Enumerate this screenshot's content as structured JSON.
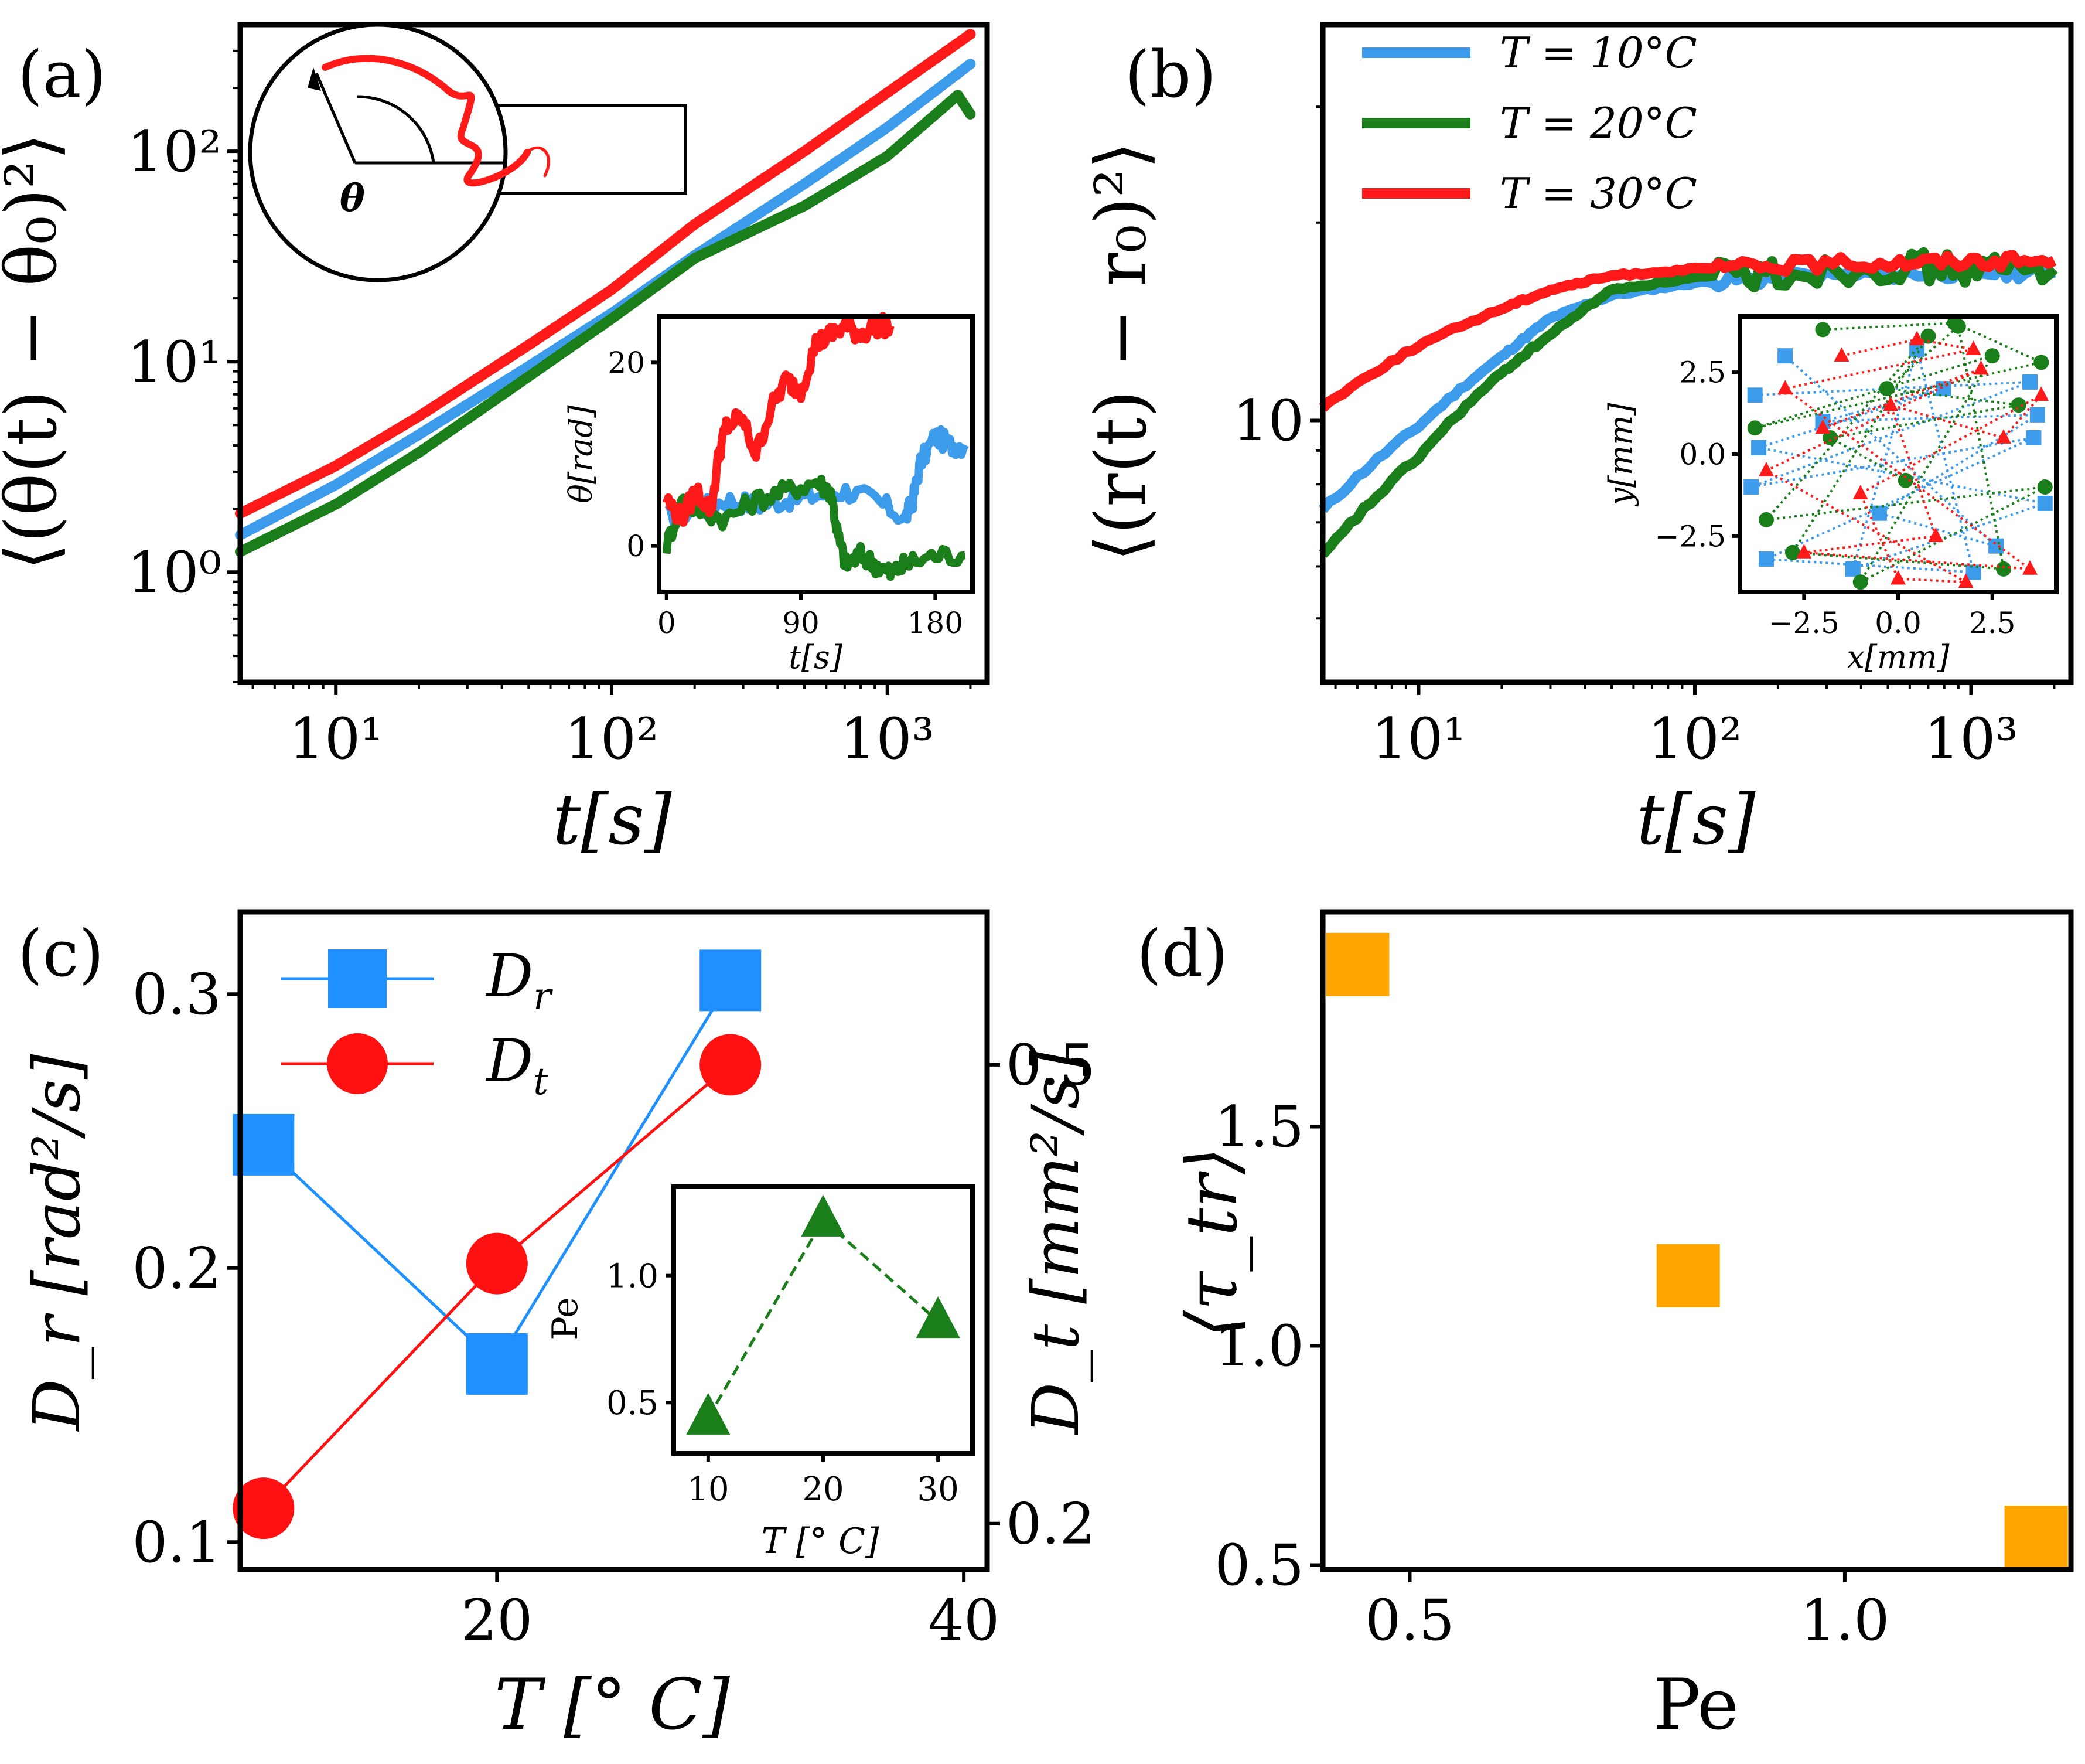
{
  "colors": {
    "T10": "#3d9bec",
    "T20": "#1a7f1a",
    "T30": "#ff1a1a",
    "Dr": "#1e90ff",
    "Dt": "#ff1111",
    "pe": "#1a7f1a",
    "tau": "#ffa500"
  },
  "chart_data": [
    {
      "id": "a",
      "panel_label": "(a)",
      "type": "line",
      "xscale": "log",
      "yscale": "log",
      "xlim": [
        4.5,
        2300
      ],
      "ylim": [
        0.3,
        400
      ],
      "xlabel": "t[s]",
      "ylabel": "⟨(θ(t) − θ₀)²⟩",
      "xticks": [
        {
          "v": 10,
          "label": "10¹"
        },
        {
          "v": 100,
          "label": "10²"
        },
        {
          "v": 1000,
          "label": "10³"
        }
      ],
      "yticks": [
        {
          "v": 1,
          "label": "10⁰"
        },
        {
          "v": 10,
          "label": "10¹"
        },
        {
          "v": 100,
          "label": "10²"
        }
      ],
      "series": [
        {
          "name": "T = 10°C",
          "color_key": "T10",
          "x": [
            4.5,
            10,
            20,
            50,
            100,
            200,
            500,
            1000,
            2000
          ],
          "y": [
            1.5,
            2.6,
            4.5,
            9.5,
            17,
            32,
            70,
            130,
            260
          ]
        },
        {
          "name": "T = 20°C",
          "color_key": "T20",
          "x": [
            4.5,
            10,
            20,
            50,
            100,
            200,
            500,
            1000,
            1800,
            2000
          ],
          "y": [
            1.25,
            2.1,
            3.7,
            8.5,
            16,
            31,
            55,
            95,
            185,
            150
          ]
        },
        {
          "name": "T = 30°C",
          "color_key": "T30",
          "x": [
            4.5,
            10,
            20,
            50,
            100,
            200,
            500,
            1000,
            2000
          ],
          "y": [
            1.9,
            3.2,
            5.5,
            12,
            22,
            45,
            100,
            190,
            360
          ]
        }
      ],
      "inset_schematic": {
        "symbol": "θ"
      },
      "inset": {
        "type": "line",
        "xlim": [
          -5,
          205
        ],
        "ylim": [
          -5,
          25
        ],
        "xlabel": "t[s]",
        "ylabel": "θ[rad]",
        "xticks": [
          {
            "v": 0,
            "label": "0"
          },
          {
            "v": 90,
            "label": "90"
          },
          {
            "v": 180,
            "label": "180"
          }
        ],
        "yticks": [
          {
            "v": 0,
            "label": "0"
          },
          {
            "v": 20,
            "label": "20"
          }
        ],
        "series": [
          {
            "color_key": "T10",
            "x": [
              0,
              20,
              40,
              60,
              80,
              100,
              120,
              140,
              160,
              165,
              170,
              180,
              190,
              200
            ],
            "y": [
              3,
              4,
              5,
              4.5,
              5,
              5.5,
              6,
              5,
              3,
              5,
              9,
              12,
              11,
              11
            ]
          },
          {
            "color_key": "T20",
            "x": [
              0,
              10,
              20,
              40,
              60,
              80,
              100,
              110,
              115,
              120,
              130,
              140,
              150,
              160,
              180,
              200
            ],
            "y": [
              0,
              5,
              4,
              3,
              5,
              6,
              7,
              6,
              1,
              -2,
              -1,
              -2,
              -3,
              -2,
              -1,
              -1
            ]
          },
          {
            "color_key": "T30",
            "x": [
              0,
              10,
              20,
              30,
              35,
              40,
              50,
              60,
              70,
              80,
              90,
              100,
              110,
              120,
              130,
              140,
              150
            ],
            "y": [
              5,
              3,
              6,
              4,
              10,
              13,
              14,
              10,
              15,
              18,
              17,
              22,
              23,
              24,
              23,
              24,
              24
            ]
          }
        ]
      }
    },
    {
      "id": "b",
      "panel_label": "(b)",
      "type": "line",
      "xscale": "log",
      "yscale": "log",
      "xlim": [
        4.5,
        2300
      ],
      "ylim": [
        4,
        40
      ],
      "xlabel": "t[s]",
      "ylabel": "⟨(r(t) − r₀)²⟩",
      "xticks": [
        {
          "v": 10,
          "label": "10¹"
        },
        {
          "v": 100,
          "label": "10²"
        },
        {
          "v": 1000,
          "label": "10³"
        }
      ],
      "yticks": [
        {
          "v": 10,
          "label": "10"
        }
      ],
      "legend": [
        {
          "label": "T = 10°C",
          "color_key": "T10"
        },
        {
          "label": "T = 20°C",
          "color_key": "T20"
        },
        {
          "label": "T = 30°C",
          "color_key": "T30"
        }
      ],
      "series": [
        {
          "name": "T = 10°C",
          "color_key": "T10",
          "x": [
            4.5,
            10,
            20,
            30,
            50,
            100,
            200,
            500,
            1000,
            2000
          ],
          "y": [
            7.3,
            9.8,
            12.5,
            14.3,
            15.5,
            16.2,
            16.5,
            16.7,
            16.8,
            16.8
          ]
        },
        {
          "name": "T = 20°C",
          "color_key": "T20",
          "x": [
            4.5,
            10,
            20,
            30,
            50,
            100,
            200,
            500,
            1000,
            2000
          ],
          "y": [
            6.2,
            8.8,
            11.8,
            13.5,
            15.8,
            16.5,
            16.8,
            17.2,
            17.0,
            17.0
          ]
        },
        {
          "name": "T = 30°C",
          "color_key": "T30",
          "x": [
            4.5,
            10,
            20,
            30,
            50,
            100,
            200,
            500,
            1000,
            2000
          ],
          "y": [
            10.5,
            13.0,
            14.8,
            15.8,
            16.6,
            17.0,
            17.2,
            17.4,
            17.5,
            17.5
          ]
        }
      ],
      "inset": {
        "type": "scatter",
        "xlim": [
          -4.2,
          4.2
        ],
        "ylim": [
          -4.2,
          4.2
        ],
        "xlabel": "x[mm]",
        "ylabel": "y[mm]",
        "xticks": [
          {
            "v": -2.5,
            "label": "−2.5"
          },
          {
            "v": 0,
            "label": "0.0"
          },
          {
            "v": 2.5,
            "label": "2.5"
          }
        ],
        "yticks": [
          {
            "v": -2.5,
            "label": "−2.5"
          },
          {
            "v": 0,
            "label": "0.0"
          },
          {
            "v": 2.5,
            "label": "2.5"
          }
        ],
        "series": [
          {
            "color_key": "T10",
            "marker": "square",
            "x": [
              -3.8,
              3.5,
              -3.9,
              3.6,
              -3.5,
              2.0,
              0.5,
              -1.2,
              3.9,
              -3.7,
              1.2,
              -2.0,
              3.7,
              -0.5,
              2.6,
              -3.0
            ],
            "y": [
              1.8,
              2.2,
              -1.0,
              0.5,
              -3.2,
              -3.6,
              3.2,
              -3.5,
              -1.5,
              0.2,
              2.0,
              1.0,
              1.2,
              -1.8,
              -2.8,
              3.0
            ]
          },
          {
            "color_key": "T20",
            "marker": "circle",
            "x": [
              -2.0,
              1.5,
              3.8,
              -3.8,
              2.5,
              -1.0,
              3.9,
              -3.5,
              0.8,
              -2.8,
              2.8,
              1.6,
              -0.3,
              3.2,
              -1.8,
              0.2
            ],
            "y": [
              3.8,
              4.0,
              2.8,
              0.8,
              3.0,
              -3.9,
              -1.0,
              -2.0,
              3.6,
              -3.0,
              -3.5,
              3.9,
              2.0,
              1.5,
              0.5,
              -0.8
            ]
          },
          {
            "color_key": "T30",
            "marker": "triangle",
            "x": [
              -1.5,
              0.5,
              2.0,
              -3.0,
              3.5,
              -2.5,
              1.0,
              -0.2,
              2.8,
              3.8,
              -1.0,
              0.0,
              1.8,
              -3.5,
              2.2,
              -2.0
            ],
            "y": [
              3.0,
              3.5,
              3.2,
              2.0,
              -3.5,
              -3.0,
              -2.5,
              1.5,
              0.5,
              1.8,
              -1.2,
              -3.8,
              -3.9,
              -0.5,
              2.6,
              0.8
            ]
          }
        ]
      }
    },
    {
      "id": "c",
      "panel_label": "(c)",
      "type": "line",
      "xlim": [
        9,
        41
      ],
      "xlabel": "T [° C]",
      "ylabel_left": "D_r [rad²/s]",
      "ylabel_right": "D_t [mm²/s]",
      "ylim_left": [
        0.09,
        0.33
      ],
      "ylim_right": [
        0.17,
        0.6
      ],
      "xticks": [
        {
          "v": 20,
          "label": "20"
        },
        {
          "v": 40,
          "label": "40"
        }
      ],
      "yticks_left": [
        {
          "v": 0.1,
          "label": "0.1"
        },
        {
          "v": 0.2,
          "label": "0.2"
        },
        {
          "v": 0.3,
          "label": "0.3"
        }
      ],
      "yticks_right": [
        {
          "v": 0.2,
          "label": "0.2"
        },
        {
          "v": 0.5,
          "label": "0.5"
        }
      ],
      "legend": [
        {
          "label": "D",
          "sub": "r",
          "color_key": "Dr",
          "marker": "square"
        },
        {
          "label": "D",
          "sub": "t",
          "color_key": "Dt",
          "marker": "circle"
        }
      ],
      "series": [
        {
          "name": "D_r",
          "axis": "left",
          "color_key": "Dr",
          "marker": "square",
          "x": [
            10,
            20,
            30
          ],
          "y": [
            0.245,
            0.165,
            0.305
          ]
        },
        {
          "name": "D_t",
          "axis": "right",
          "color_key": "Dt",
          "marker": "circle",
          "x": [
            10,
            20,
            30
          ],
          "y": [
            0.21,
            0.37,
            0.5
          ]
        }
      ],
      "inset": {
        "type": "line",
        "xlim": [
          7,
          33
        ],
        "ylim": [
          0.3,
          1.35
        ],
        "xlabel": "T [° C]",
        "ylabel": "Pe",
        "xticks": [
          {
            "v": 10,
            "label": "10"
          },
          {
            "v": 20,
            "label": "20"
          },
          {
            "v": 30,
            "label": "30"
          }
        ],
        "yticks": [
          {
            "v": 0.5,
            "label": "0.5"
          },
          {
            "v": 1.0,
            "label": "1.0"
          }
        ],
        "series": [
          {
            "name": "Pe",
            "color_key": "pe",
            "marker": "triangle",
            "x": [
              10,
              20,
              30
            ],
            "y": [
              0.44,
              1.22,
              0.82
            ]
          }
        ]
      }
    },
    {
      "id": "d",
      "panel_label": "(d)",
      "type": "scatter",
      "xlim": [
        0.4,
        1.26
      ],
      "ylim": [
        0.49,
        1.99
      ],
      "xlabel": "Pe",
      "ylabel": "⟨τ_tr⟩",
      "xticks": [
        {
          "v": 0.5,
          "label": "0.5"
        },
        {
          "v": 1.0,
          "label": "1.0"
        }
      ],
      "yticks": [
        {
          "v": 0.5,
          "label": "0.5"
        },
        {
          "v": 1.0,
          "label": "1.0"
        },
        {
          "v": 1.5,
          "label": "1.5"
        }
      ],
      "series": [
        {
          "name": "tau",
          "color_key": "tau",
          "marker": "square",
          "x": [
            0.44,
            0.82,
            1.22
          ],
          "y": [
            1.87,
            1.16,
            0.55
          ]
        }
      ]
    }
  ]
}
